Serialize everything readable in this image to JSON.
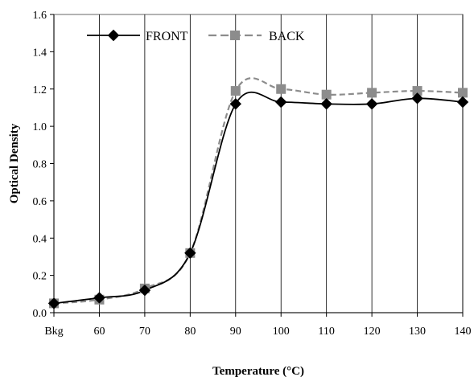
{
  "chart_data": {
    "type": "line",
    "title": "",
    "xlabel": "Temperature (°C)",
    "ylabel": "Optical Density",
    "categories": [
      "Bkg",
      "60",
      "70",
      "80",
      "90",
      "100",
      "110",
      "120",
      "130",
      "140"
    ],
    "ylim": [
      0,
      1.6
    ],
    "yticks": [
      "0.0",
      "0.2",
      "0.4",
      "0.6",
      "0.8",
      "1.0",
      "1.2",
      "1.4",
      "1.6"
    ],
    "grid": "vertical",
    "legend_position": "top-left",
    "series": [
      {
        "name": "FRONT",
        "marker": "diamond",
        "color": "#000000",
        "line_style": "solid",
        "values": [
          0.05,
          0.08,
          0.12,
          0.32,
          1.12,
          1.13,
          1.12,
          1.12,
          1.15,
          1.13
        ]
      },
      {
        "name": "BACK",
        "marker": "square",
        "color": "#8c8c8c",
        "line_style": "dashed",
        "values": [
          0.05,
          0.07,
          0.13,
          0.32,
          1.19,
          1.2,
          1.17,
          1.18,
          1.19,
          1.18
        ]
      }
    ]
  }
}
